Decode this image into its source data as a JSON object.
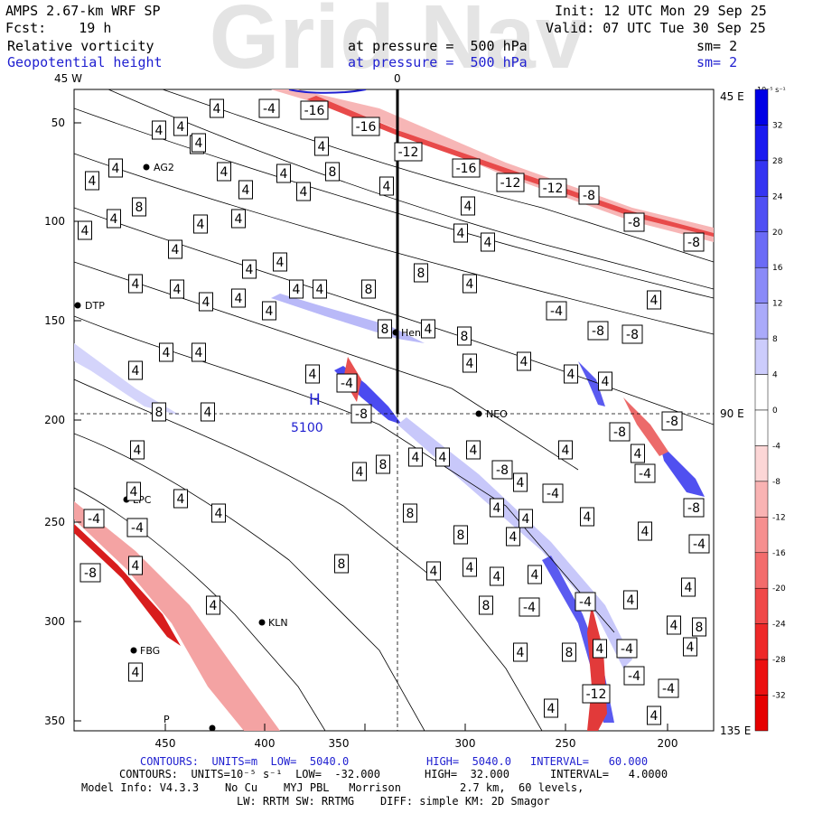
{
  "watermark": "Grid Nav",
  "header": {
    "model": "AMPS 2.67-km WRF SP",
    "forecast": "Fcst:    19 h",
    "init": "Init: 12 UTC Mon 29 Sep 25",
    "valid": "Valid: 07 UTC Tue 30 Sep 25",
    "field1": {
      "name": "Relative vorticity",
      "level": "at pressure =  500 hPa",
      "smooth": "sm= 2"
    },
    "field2": {
      "name": "Geopotential height",
      "level": "at pressure =  500 hPa",
      "smooth": "sm= 2"
    }
  },
  "axes": {
    "top": [
      "45 W",
      "0"
    ],
    "right": [
      "45 E",
      "90 E",
      "135 E"
    ],
    "left": [
      "50",
      "100",
      "150",
      "200",
      "250",
      "300",
      "350"
    ],
    "bottom": [
      "450",
      "400",
      "350",
      "300",
      "250",
      "200"
    ]
  },
  "colorbar": {
    "unit": "10⁻⁵ s⁻¹",
    "labels": [
      "32",
      "28",
      "24",
      "20",
      "16",
      "12",
      "8",
      "4",
      "0",
      "-4",
      "-8",
      "-12",
      "-16",
      "-20",
      "-24",
      "-28",
      "-32"
    ],
    "colors": [
      "#0000e6",
      "#1a1af0",
      "#3434f2",
      "#4f4ff4",
      "#6b6bf6",
      "#8a8af8",
      "#aaaafa",
      "#ccccfc",
      "#ffffff",
      "#ffffff",
      "#fcd6d6",
      "#f9b3b3",
      "#f68f8f",
      "#f36c6c",
      "#f04848",
      "#ee2828",
      "#ec1010",
      "#e60000"
    ]
  },
  "stations": [
    {
      "label": "AG2"
    },
    {
      "label": "DTP"
    },
    {
      "label": "Henry"
    },
    {
      "label": "NEO"
    },
    {
      "label": "LPC"
    },
    {
      "label": "KLN"
    },
    {
      "label": "FBG"
    },
    {
      "label": "P"
    }
  ],
  "annotations": {
    "high_marker": "H",
    "high_value": "5100"
  },
  "contour_labels": [
    "4",
    "8",
    "-4",
    "-8",
    "-12",
    "-16"
  ],
  "footer": {
    "line1_parts": [
      "CONTOURS:  UNITS=m  LOW=  5040.0",
      "HIGH=  5040.0",
      "INTERVAL=   60.000"
    ],
    "line2_parts": [
      "CONTOURS:  UNITS=10⁻⁵ s⁻¹  LOW=  -32.000",
      "HIGH=  32.000",
      "INTERVAL=   4.0000"
    ],
    "line3": "Model Info: V4.3.3    No Cu    MYJ PBL   Morrison         2.7 km,  60 levels,",
    "line4": "LW: RRTM SW: RRTMG    DIFF: simple KM: 2D Smagor"
  }
}
